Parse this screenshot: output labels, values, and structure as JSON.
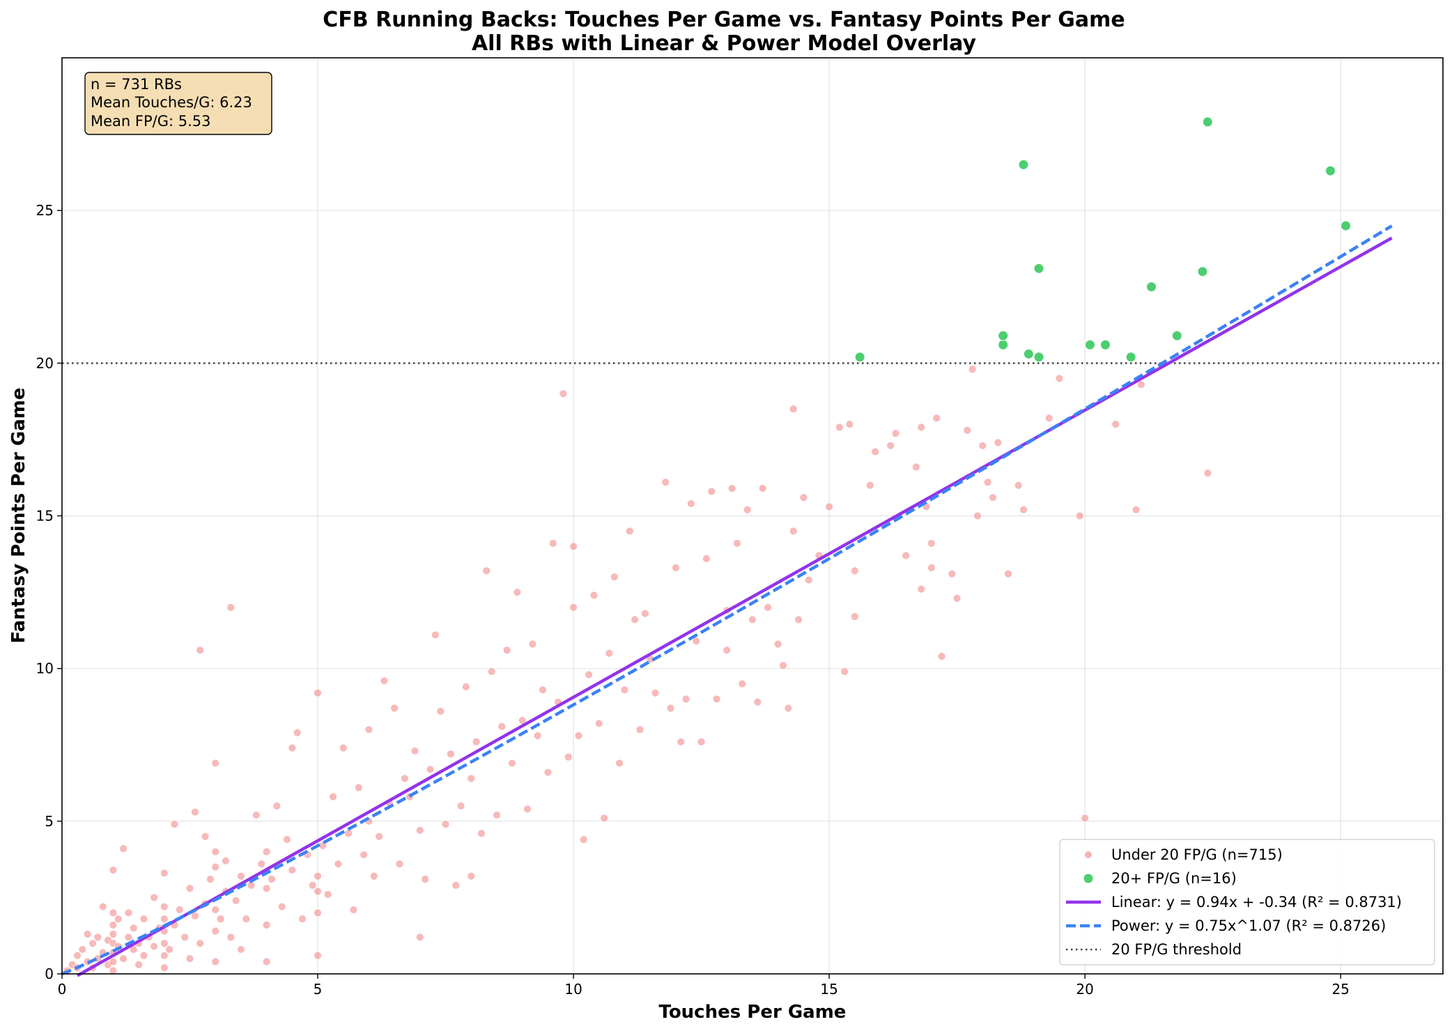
{
  "chart_data": {
    "type": "scatter",
    "title": "CFB Running Backs: Touches Per Game vs. Fantasy Points Per Game",
    "subtitle": "All RBs with Linear & Power Model Overlay",
    "xlabel": "Touches Per Game",
    "ylabel": "Fantasy Points Per Game",
    "xlim": [
      0,
      27
    ],
    "ylim": [
      0,
      30
    ],
    "xticks": [
      0,
      5,
      10,
      15,
      20,
      25
    ],
    "yticks": [
      0,
      5,
      10,
      15,
      20,
      25
    ],
    "grid": true,
    "legend_position": "bottom-right",
    "stats_box": {
      "lines": [
        "n = 731 RBs",
        "Mean Touches/G: 6.23",
        "Mean FP/G: 5.53"
      ],
      "color": "#f5deb3"
    },
    "threshold": {
      "y": 20,
      "label": "20 FP/G threshold",
      "color": "#444444"
    },
    "linear_model": {
      "slope": 0.94,
      "intercept": -0.34,
      "x_range": [
        0.3,
        26
      ],
      "label": "Linear: y = 0.94x + -0.34 (R² = 0.8731)",
      "color": "#9333ea"
    },
    "power_model": {
      "a": 0.75,
      "b": 1.07,
      "x_range": [
        0,
        26
      ],
      "label": "Power: y = 0.75x^1.07 (R² = 0.8726)",
      "color": "#3b82f6"
    },
    "series": [
      {
        "name": "Under 20 FP/G (n=715)",
        "color": "#f08080",
        "points": [
          [
            0.1,
            0.1
          ],
          [
            0.2,
            0.3
          ],
          [
            0.3,
            0.2
          ],
          [
            0.3,
            0.6
          ],
          [
            0.4,
            0.8
          ],
          [
            0.5,
            1.3
          ],
          [
            0.5,
            0.4
          ],
          [
            0.6,
            1.0
          ],
          [
            0.6,
            0.2
          ],
          [
            0.7,
            0.5
          ],
          [
            0.7,
            1.2
          ],
          [
            0.8,
            0.7
          ],
          [
            0.8,
            2.2
          ],
          [
            0.9,
            0.3
          ],
          [
            0.9,
            1.1
          ],
          [
            1.0,
            0.1
          ],
          [
            1.0,
            0.4
          ],
          [
            1.0,
            0.7
          ],
          [
            1.0,
            1.0
          ],
          [
            1.0,
            1.3
          ],
          [
            1.0,
            1.6
          ],
          [
            1.0,
            2.0
          ],
          [
            1.0,
            3.4
          ],
          [
            1.1,
            0.9
          ],
          [
            1.1,
            1.8
          ],
          [
            1.2,
            0.5
          ],
          [
            1.2,
            4.1
          ],
          [
            1.3,
            1.2
          ],
          [
            1.3,
            2.0
          ],
          [
            1.4,
            0.8
          ],
          [
            1.4,
            1.5
          ],
          [
            1.5,
            1.0
          ],
          [
            1.5,
            0.3
          ],
          [
            1.6,
            1.8
          ],
          [
            1.6,
            0.6
          ],
          [
            1.7,
            1.2
          ],
          [
            1.8,
            0.9
          ],
          [
            1.8,
            2.5
          ],
          [
            1.9,
            1.5
          ],
          [
            2.0,
            0.2
          ],
          [
            2.0,
            0.6
          ],
          [
            2.0,
            1.0
          ],
          [
            2.0,
            1.4
          ],
          [
            2.0,
            1.8
          ],
          [
            2.0,
            2.2
          ],
          [
            2.0,
            3.3
          ],
          [
            2.1,
            0.8
          ],
          [
            2.2,
            4.9
          ],
          [
            2.2,
            1.6
          ],
          [
            2.3,
            2.1
          ],
          [
            2.4,
            1.2
          ],
          [
            2.5,
            0.5
          ],
          [
            2.5,
            2.8
          ],
          [
            2.6,
            1.9
          ],
          [
            2.6,
            5.3
          ],
          [
            2.7,
            10.6
          ],
          [
            2.7,
            1.0
          ],
          [
            2.8,
            2.3
          ],
          [
            2.8,
            4.5
          ],
          [
            2.9,
            3.1
          ],
          [
            3.0,
            0.4
          ],
          [
            3.0,
            1.4
          ],
          [
            3.0,
            2.1
          ],
          [
            3.0,
            3.5
          ],
          [
            3.0,
            4.0
          ],
          [
            3.0,
            6.9
          ],
          [
            3.1,
            1.8
          ],
          [
            3.2,
            2.7
          ],
          [
            3.2,
            3.7
          ],
          [
            3.3,
            12.0
          ],
          [
            3.3,
            1.2
          ],
          [
            3.4,
            2.4
          ],
          [
            3.5,
            3.2
          ],
          [
            3.5,
            0.8
          ],
          [
            3.6,
            1.8
          ],
          [
            3.7,
            2.9
          ],
          [
            3.8,
            5.2
          ],
          [
            3.9,
            3.6
          ],
          [
            4.0,
            0.4
          ],
          [
            4.0,
            1.6
          ],
          [
            4.0,
            2.8
          ],
          [
            4.0,
            4.0
          ],
          [
            4.1,
            3.1
          ],
          [
            4.2,
            5.5
          ],
          [
            4.3,
            2.2
          ],
          [
            4.4,
            4.4
          ],
          [
            4.5,
            7.4
          ],
          [
            4.5,
            3.4
          ],
          [
            4.6,
            7.9
          ],
          [
            4.7,
            1.8
          ],
          [
            4.8,
            3.9
          ],
          [
            4.9,
            2.9
          ],
          [
            5.0,
            0.6
          ],
          [
            5.0,
            2.0
          ],
          [
            5.0,
            2.7
          ],
          [
            5.0,
            3.2
          ],
          [
            5.0,
            9.2
          ],
          [
            5.1,
            4.2
          ],
          [
            5.2,
            2.6
          ],
          [
            5.3,
            5.8
          ],
          [
            5.4,
            3.6
          ],
          [
            5.5,
            7.4
          ],
          [
            5.6,
            4.6
          ],
          [
            5.7,
            2.1
          ],
          [
            5.8,
            6.1
          ],
          [
            5.9,
            3.9
          ],
          [
            6.0,
            5.0
          ],
          [
            6.0,
            8.0
          ],
          [
            6.1,
            3.2
          ],
          [
            6.2,
            4.5
          ],
          [
            6.3,
            9.6
          ],
          [
            6.4,
            5.6
          ],
          [
            6.5,
            8.7
          ],
          [
            6.6,
            3.6
          ],
          [
            6.7,
            6.4
          ],
          [
            6.8,
            5.8
          ],
          [
            6.9,
            7.3
          ],
          [
            7.0,
            1.2
          ],
          [
            7.0,
            4.7
          ],
          [
            7.1,
            3.1
          ],
          [
            7.2,
            6.7
          ],
          [
            7.3,
            11.1
          ],
          [
            7.4,
            8.6
          ],
          [
            7.5,
            4.9
          ],
          [
            7.6,
            7.2
          ],
          [
            7.7,
            2.9
          ],
          [
            7.8,
            5.5
          ],
          [
            7.9,
            9.4
          ],
          [
            8.0,
            3.2
          ],
          [
            8.0,
            6.4
          ],
          [
            8.1,
            7.6
          ],
          [
            8.2,
            4.6
          ],
          [
            8.3,
            13.2
          ],
          [
            8.4,
            9.9
          ],
          [
            8.5,
            5.2
          ],
          [
            8.6,
            8.1
          ],
          [
            8.7,
            10.6
          ],
          [
            8.8,
            6.9
          ],
          [
            8.9,
            12.5
          ],
          [
            9.0,
            8.3
          ],
          [
            9.1,
            5.4
          ],
          [
            9.2,
            10.8
          ],
          [
            9.3,
            7.8
          ],
          [
            9.4,
            9.3
          ],
          [
            9.5,
            6.6
          ],
          [
            9.6,
            14.1
          ],
          [
            9.7,
            8.9
          ],
          [
            9.8,
            19.0
          ],
          [
            9.9,
            7.1
          ],
          [
            10.0,
            12.0
          ],
          [
            10.0,
            14.0
          ],
          [
            10.1,
            7.8
          ],
          [
            10.2,
            4.4
          ],
          [
            10.3,
            9.8
          ],
          [
            10.4,
            12.4
          ],
          [
            10.5,
            8.2
          ],
          [
            10.6,
            5.1
          ],
          [
            10.7,
            10.5
          ],
          [
            10.8,
            13.0
          ],
          [
            10.9,
            6.9
          ],
          [
            11.0,
            9.3
          ],
          [
            11.1,
            14.5
          ],
          [
            11.2,
            11.6
          ],
          [
            11.3,
            8.0
          ],
          [
            11.4,
            11.8
          ],
          [
            11.5,
            10.3
          ],
          [
            11.6,
            9.2
          ],
          [
            11.8,
            16.1
          ],
          [
            11.9,
            8.7
          ],
          [
            12.0,
            13.3
          ],
          [
            12.1,
            7.6
          ],
          [
            12.2,
            9.0
          ],
          [
            12.3,
            15.4
          ],
          [
            12.4,
            10.9
          ],
          [
            12.5,
            7.6
          ],
          [
            12.6,
            13.6
          ],
          [
            12.7,
            15.8
          ],
          [
            12.8,
            9.0
          ],
          [
            13.0,
            11.9
          ],
          [
            13.0,
            10.6
          ],
          [
            13.1,
            15.9
          ],
          [
            13.2,
            14.1
          ],
          [
            13.3,
            9.5
          ],
          [
            13.4,
            15.2
          ],
          [
            13.5,
            11.6
          ],
          [
            13.6,
            8.9
          ],
          [
            13.7,
            15.9
          ],
          [
            13.8,
            12.0
          ],
          [
            14.0,
            10.8
          ],
          [
            14.1,
            10.1
          ],
          [
            14.2,
            8.7
          ],
          [
            14.3,
            18.5
          ],
          [
            14.3,
            14.5
          ],
          [
            14.4,
            11.6
          ],
          [
            14.5,
            15.6
          ],
          [
            14.6,
            12.9
          ],
          [
            14.8,
            13.7
          ],
          [
            15.0,
            15.3
          ],
          [
            15.2,
            17.9
          ],
          [
            15.3,
            9.9
          ],
          [
            15.4,
            18.0
          ],
          [
            15.5,
            11.7
          ],
          [
            15.5,
            13.2
          ],
          [
            15.8,
            16.0
          ],
          [
            15.9,
            17.1
          ],
          [
            16.2,
            17.3
          ],
          [
            16.3,
            17.7
          ],
          [
            16.5,
            13.7
          ],
          [
            16.7,
            16.6
          ],
          [
            16.8,
            12.6
          ],
          [
            16.8,
            17.9
          ],
          [
            16.9,
            15.3
          ],
          [
            17.0,
            13.3
          ],
          [
            17.0,
            14.1
          ],
          [
            17.1,
            18.2
          ],
          [
            17.2,
            10.4
          ],
          [
            17.4,
            13.1
          ],
          [
            17.5,
            12.3
          ],
          [
            17.7,
            17.8
          ],
          [
            17.8,
            19.8
          ],
          [
            17.9,
            15.0
          ],
          [
            18.0,
            17.3
          ],
          [
            18.1,
            16.1
          ],
          [
            18.2,
            15.6
          ],
          [
            18.3,
            17.4
          ],
          [
            18.5,
            13.1
          ],
          [
            18.7,
            16.0
          ],
          [
            18.8,
            15.2
          ],
          [
            19.3,
            18.2
          ],
          [
            19.5,
            19.5
          ],
          [
            19.9,
            15.0
          ],
          [
            20.0,
            5.1
          ],
          [
            20.6,
            18.0
          ],
          [
            21.0,
            15.2
          ],
          [
            21.1,
            19.3
          ],
          [
            22.4,
            16.4
          ]
        ]
      },
      {
        "name": "20+ FP/G (n=16)",
        "color": "#4cce6f",
        "points": [
          [
            15.6,
            20.2
          ],
          [
            18.4,
            20.6
          ],
          [
            18.4,
            20.9
          ],
          [
            18.8,
            26.5
          ],
          [
            18.9,
            20.3
          ],
          [
            19.1,
            20.2
          ],
          [
            19.1,
            23.1
          ],
          [
            20.1,
            20.6
          ],
          [
            20.4,
            20.6
          ],
          [
            20.9,
            20.2
          ],
          [
            21.3,
            22.5
          ],
          [
            21.8,
            20.9
          ],
          [
            22.3,
            23.0
          ],
          [
            22.4,
            27.9
          ],
          [
            24.8,
            26.3
          ],
          [
            25.1,
            24.5
          ]
        ]
      }
    ]
  }
}
